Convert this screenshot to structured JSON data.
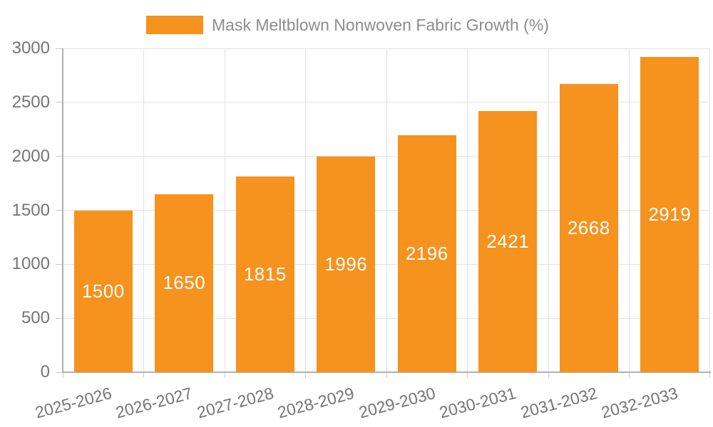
{
  "chart_data": {
    "type": "bar",
    "legend_label": "Mask Meltblown Nonwoven Fabric Growth (%)",
    "categories": [
      "2025-2026",
      "2026-2027",
      "2027-2028",
      "2028-2029",
      "2029-2030",
      "2030-2031",
      "2031-2032",
      "2032-2033"
    ],
    "values": [
      1500,
      1650,
      1815,
      1996,
      2196,
      2421,
      2668,
      2919
    ],
    "ylim": [
      0,
      3000
    ],
    "yticks": [
      0,
      500,
      1000,
      1500,
      2000,
      2500,
      3000
    ],
    "grid": true,
    "legend_position": "top",
    "value_labels_inside_bars": true,
    "x_label_rotation_deg": -15
  },
  "colors": {
    "bar": "#F6921E",
    "grid": "#e2e2e2",
    "axis": "#b0b0b0",
    "tick": "#c9c9c9",
    "axis_text": "#757575",
    "legend_text": "#8c8c8c",
    "value_text": "#ffffff",
    "background": "#ffffff"
  }
}
